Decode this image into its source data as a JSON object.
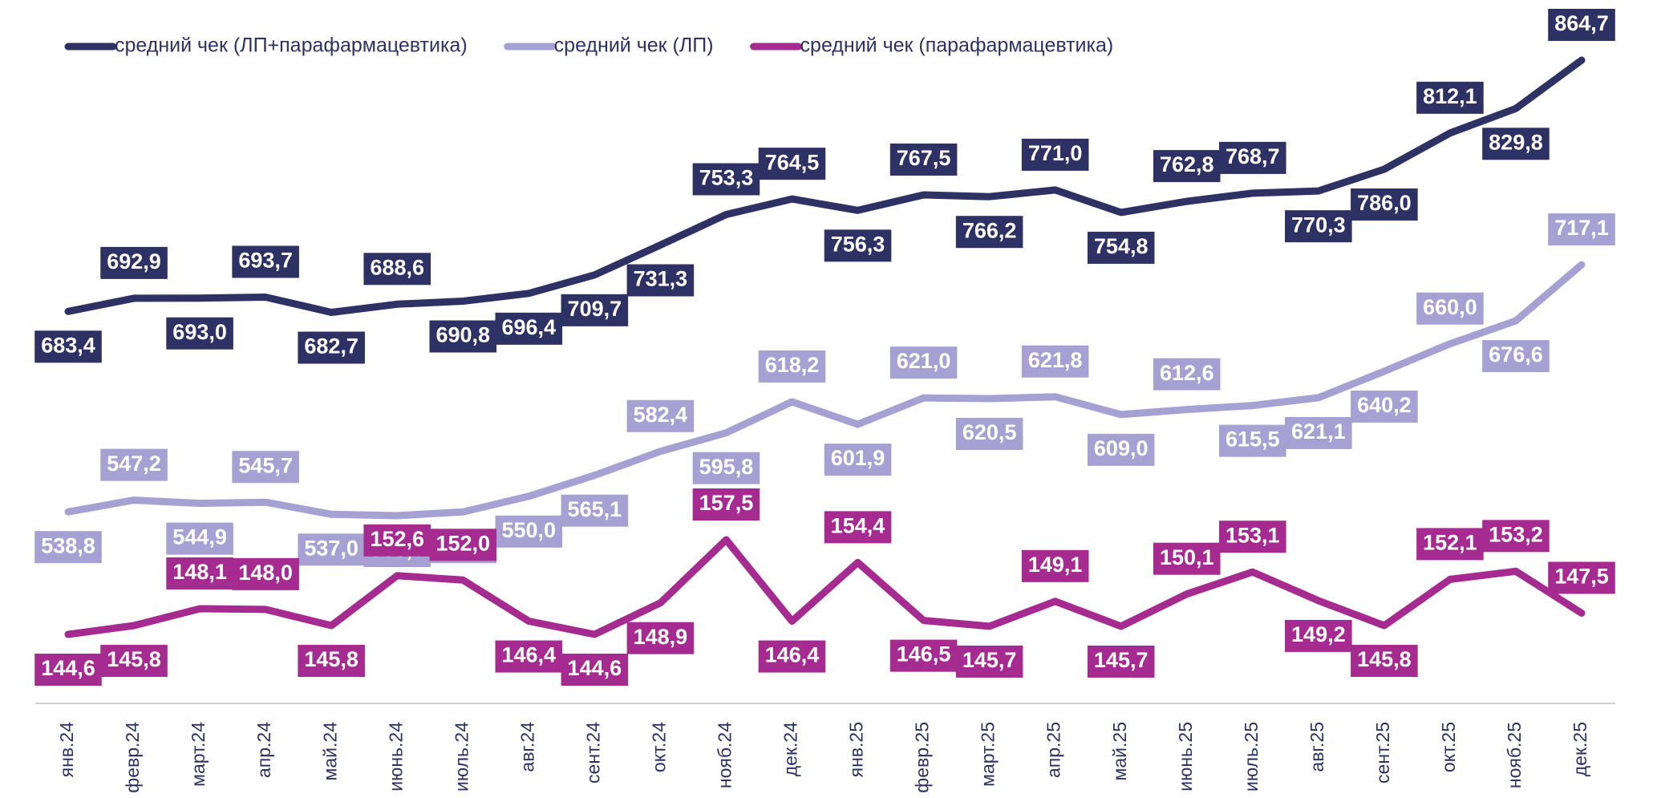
{
  "chart_data": {
    "type": "line",
    "categories": [
      "янв.24",
      "февр.24",
      "март.24",
      "апр.24",
      "май.24",
      "июнь.24",
      "июль.24",
      "авг.24",
      "сент.24",
      "окт.24",
      "нояб.24",
      "дек.24",
      "янв.25",
      "февр.25",
      "март.25",
      "апр.25",
      "май.25",
      "июнь.25",
      "июль.25",
      "авг.25",
      "сент.25",
      "окт.25",
      "нояб.25",
      "дек.25"
    ],
    "series": [
      {
        "name": "средний чек (ЛП+парафармацевтика)",
        "color": "#2e3163",
        "values": [
          683.4,
          692.9,
          693.0,
          693.7,
          682.7,
          688.6,
          690.8,
          696.4,
          709.7,
          731.3,
          753.3,
          764.5,
          756.3,
          767.5,
          766.2,
          771.0,
          754.8,
          762.8,
          768.7,
          770.3,
          786.0,
          812.1,
          829.8,
          864.7
        ],
        "value_labels": [
          "683,4",
          "692,9",
          "693,0",
          "693,7",
          "682,7",
          "688,6",
          "690,8",
          "696,4",
          "709,7",
          "731,3",
          "753,3",
          "764,5",
          "756,3",
          "767,5",
          "766,2",
          "771,0",
          "754,8",
          "762,8",
          "768,7",
          "770,3",
          "786,0",
          "812,1",
          "829,8",
          "864,7"
        ]
      },
      {
        "name": "средний чек (ЛП)",
        "color": "#a7a1d3",
        "values": [
          538.8,
          547.2,
          544.9,
          545.7,
          537.0,
          536.0,
          538.8,
          550.0,
          565.1,
          582.4,
          595.8,
          618.2,
          601.9,
          621.0,
          620.5,
          621.8,
          609.0,
          612.6,
          615.5,
          621.1,
          640.2,
          660.0,
          676.6,
          717.1
        ],
        "value_labels": [
          "538,8",
          "547,2",
          "544,9",
          "545,7",
          "537,0",
          "536,0",
          "538,8",
          "550,0",
          "565,1",
          "582,4",
          "595,8",
          "618,2",
          "601,9",
          "621,0",
          "620,5",
          "621,8",
          "609,0",
          "612,6",
          "615,5",
          "621,1",
          "640,2",
          "660,0",
          "676,6",
          "717,1"
        ]
      },
      {
        "name": "средний чек (парафармацевтика)",
        "color": "#a52b90",
        "axis": "y2",
        "values": [
          144.6,
          145.8,
          148.1,
          148.0,
          145.8,
          152.6,
          152.0,
          146.4,
          144.6,
          148.9,
          157.5,
          146.4,
          154.4,
          146.5,
          145.7,
          149.1,
          145.7,
          150.1,
          153.1,
          149.2,
          145.8,
          152.1,
          153.2,
          147.5
        ],
        "value_labels": [
          "144,6",
          "145,8",
          "148,1",
          "148,0",
          "145,8",
          "152,6",
          "152,0",
          "146,4",
          "144,6",
          "148,9",
          "157,5",
          "146,4",
          "154,4",
          "146,5",
          "145,7",
          "149,1",
          "145,7",
          "150,1",
          "153,1",
          "149,2",
          "145,8",
          "152,1",
          "153,2",
          "147,5"
        ]
      }
    ]
  }
}
